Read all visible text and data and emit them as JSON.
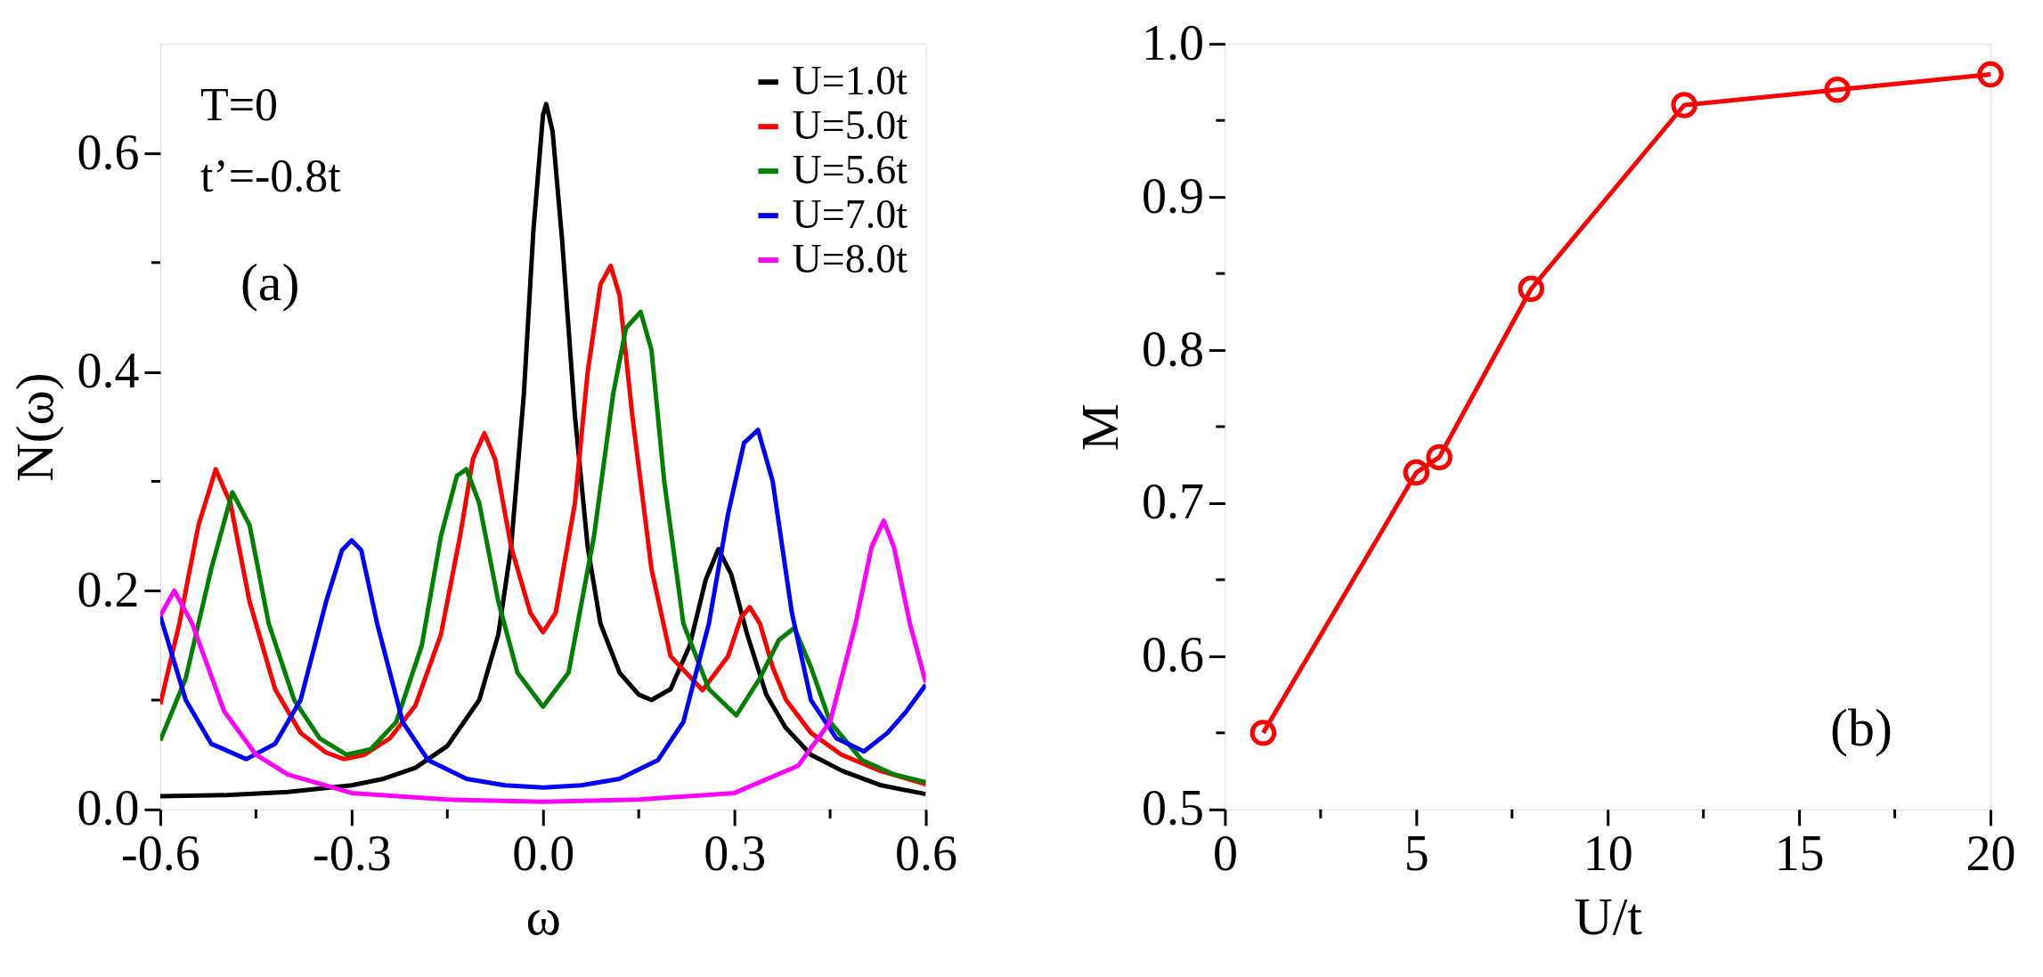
{
  "chart_data": [
    {
      "type": "line",
      "xlabel": "ω",
      "ylabel": "N(ω)",
      "legend": "top right",
      "line_style": "solid",
      "grid": false,
      "xlim": [
        -0.6,
        0.6
      ],
      "xticks": [
        {
          "value": -0.6,
          "label": "-0.6"
        },
        {
          "value": -0.45,
          "label": null
        },
        {
          "value": -0.3,
          "label": "-0.3"
        },
        {
          "value": -0.15,
          "label": null
        },
        {
          "value": 0,
          "label": "0.0"
        },
        {
          "value": 0.15,
          "label": null
        },
        0.3,
        {
          "value": 0.45,
          "label": null
        },
        0.6
      ],
      "ylim": [
        0,
        0.7
      ],
      "yticks": [
        {
          "value": 0,
          "label": "0.0"
        },
        {
          "value": 0.1,
          "label": null
        },
        0.2,
        {
          "value": 0.3,
          "label": null
        },
        0.4,
        {
          "value": 0.5,
          "label": null
        },
        0.6
      ],
      "annotations": [
        "T=0",
        "t’=-0.8t",
        "(a)"
      ],
      "series": [
        {
          "name": "U=1.0t",
          "color": "#000000",
          "x": [
            -0.6,
            -0.5,
            -0.4,
            -0.3,
            -0.25,
            -0.2,
            -0.15,
            -0.1,
            -0.07,
            -0.05,
            -0.03,
            -0.015,
            0.0,
            0.005,
            0.015,
            0.03,
            0.05,
            0.07,
            0.09,
            0.12,
            0.15,
            0.17,
            0.2,
            0.23,
            0.255,
            0.275,
            0.295,
            0.32,
            0.35,
            0.38,
            0.42,
            0.47,
            0.53,
            0.6
          ],
          "values": [
            0.012,
            0.013,
            0.016,
            0.022,
            0.028,
            0.038,
            0.058,
            0.1,
            0.16,
            0.24,
            0.38,
            0.53,
            0.635,
            0.645,
            0.62,
            0.52,
            0.36,
            0.24,
            0.17,
            0.125,
            0.105,
            0.1,
            0.11,
            0.15,
            0.21,
            0.238,
            0.215,
            0.16,
            0.105,
            0.075,
            0.05,
            0.035,
            0.022,
            0.014
          ]
        },
        {
          "name": "U=5.0t",
          "color": "#ff0000",
          "x": [
            -0.6,
            -0.57,
            -0.54,
            -0.513,
            -0.49,
            -0.46,
            -0.42,
            -0.38,
            -0.34,
            -0.312,
            -0.28,
            -0.24,
            -0.2,
            -0.16,
            -0.13,
            -0.11,
            -0.092,
            -0.075,
            -0.05,
            -0.02,
            0.0,
            0.02,
            0.05,
            0.07,
            0.09,
            0.106,
            0.12,
            0.14,
            0.17,
            0.2,
            0.25,
            0.29,
            0.31,
            0.324,
            0.34,
            0.36,
            0.381,
            0.42,
            0.468,
            0.53,
            0.6
          ],
          "values": [
            0.096,
            0.17,
            0.26,
            0.311,
            0.28,
            0.19,
            0.11,
            0.07,
            0.052,
            0.046,
            0.05,
            0.065,
            0.095,
            0.16,
            0.25,
            0.32,
            0.344,
            0.32,
            0.24,
            0.18,
            0.162,
            0.18,
            0.28,
            0.4,
            0.48,
            0.497,
            0.47,
            0.36,
            0.22,
            0.14,
            0.109,
            0.14,
            0.175,
            0.185,
            0.17,
            0.13,
            0.1,
            0.07,
            0.05,
            0.035,
            0.023
          ]
        },
        {
          "name": "U=5.6t",
          "color": "#008000",
          "x": [
            -0.6,
            -0.56,
            -0.52,
            -0.487,
            -0.46,
            -0.43,
            -0.39,
            -0.35,
            -0.308,
            -0.27,
            -0.23,
            -0.19,
            -0.16,
            -0.135,
            -0.12,
            -0.1,
            -0.07,
            -0.04,
            0.0,
            0.04,
            0.08,
            0.11,
            0.13,
            0.153,
            0.17,
            0.19,
            0.22,
            0.26,
            0.303,
            0.34,
            0.37,
            0.394,
            0.42,
            0.45,
            0.5,
            0.55,
            0.6
          ],
          "values": [
            0.063,
            0.12,
            0.22,
            0.29,
            0.26,
            0.17,
            0.1,
            0.065,
            0.05,
            0.055,
            0.08,
            0.15,
            0.25,
            0.305,
            0.311,
            0.28,
            0.19,
            0.125,
            0.094,
            0.125,
            0.25,
            0.38,
            0.44,
            0.455,
            0.42,
            0.3,
            0.17,
            0.11,
            0.086,
            0.12,
            0.155,
            0.166,
            0.13,
            0.08,
            0.045,
            0.032,
            0.025
          ]
        },
        {
          "name": "U=7.0t",
          "color": "#0000ff",
          "x": [
            -0.6,
            -0.56,
            -0.52,
            -0.465,
            -0.42,
            -0.38,
            -0.34,
            -0.315,
            -0.3,
            -0.285,
            -0.26,
            -0.22,
            -0.18,
            -0.12,
            -0.06,
            0.0,
            0.06,
            0.12,
            0.18,
            0.22,
            0.26,
            0.29,
            0.315,
            0.337,
            0.36,
            0.39,
            0.42,
            0.46,
            0.503,
            0.54,
            0.57,
            0.6
          ],
          "values": [
            0.177,
            0.1,
            0.06,
            0.046,
            0.06,
            0.1,
            0.19,
            0.237,
            0.246,
            0.237,
            0.17,
            0.08,
            0.045,
            0.028,
            0.022,
            0.02,
            0.022,
            0.028,
            0.045,
            0.08,
            0.17,
            0.27,
            0.335,
            0.347,
            0.3,
            0.18,
            0.1,
            0.065,
            0.053,
            0.07,
            0.09,
            0.114
          ]
        },
        {
          "name": "U=8.0t",
          "color": "#ff00ff",
          "x": [
            -0.6,
            -0.578,
            -0.55,
            -0.5,
            -0.45,
            -0.4,
            -0.3,
            -0.15,
            0.0,
            0.15,
            0.3,
            0.4,
            0.45,
            0.49,
            0.515,
            0.534,
            0.55,
            0.575,
            0.6
          ],
          "values": [
            0.177,
            0.2,
            0.17,
            0.09,
            0.05,
            0.032,
            0.015,
            0.009,
            0.007,
            0.009,
            0.015,
            0.04,
            0.08,
            0.17,
            0.24,
            0.264,
            0.24,
            0.17,
            0.116
          ]
        }
      ]
    },
    {
      "type": "line",
      "xlabel": "U/t",
      "ylabel": "M",
      "marker": "circle",
      "line_style": "solid",
      "grid": false,
      "xlim": [
        0,
        20
      ],
      "xticks": [
        0,
        {
          "value": 2.5,
          "label": null
        },
        5,
        {
          "value": 7.5,
          "label": null
        },
        10,
        {
          "value": 12.5,
          "label": null
        },
        15,
        {
          "value": 17.5,
          "label": null
        },
        20
      ],
      "ylim": [
        0.5,
        1.0
      ],
      "yticks": [
        0.5,
        {
          "value": 0.55,
          "label": null
        },
        0.6,
        {
          "value": 0.65,
          "label": null
        },
        0.7,
        {
          "value": 0.75,
          "label": null
        },
        0.8,
        {
          "value": 0.85,
          "label": null
        },
        0.9,
        {
          "value": 0.95,
          "label": null
        },
        {
          "value": 1,
          "label": "1.0"
        }
      ],
      "annotations": [
        "(b)"
      ],
      "series": [
        {
          "color": "#ff0000",
          "x": [
            1,
            5,
            5.6,
            8,
            12,
            16,
            20
          ],
          "values": [
            0.55,
            0.72,
            0.73,
            0.84,
            0.96,
            0.97,
            0.98
          ]
        }
      ]
    }
  ]
}
